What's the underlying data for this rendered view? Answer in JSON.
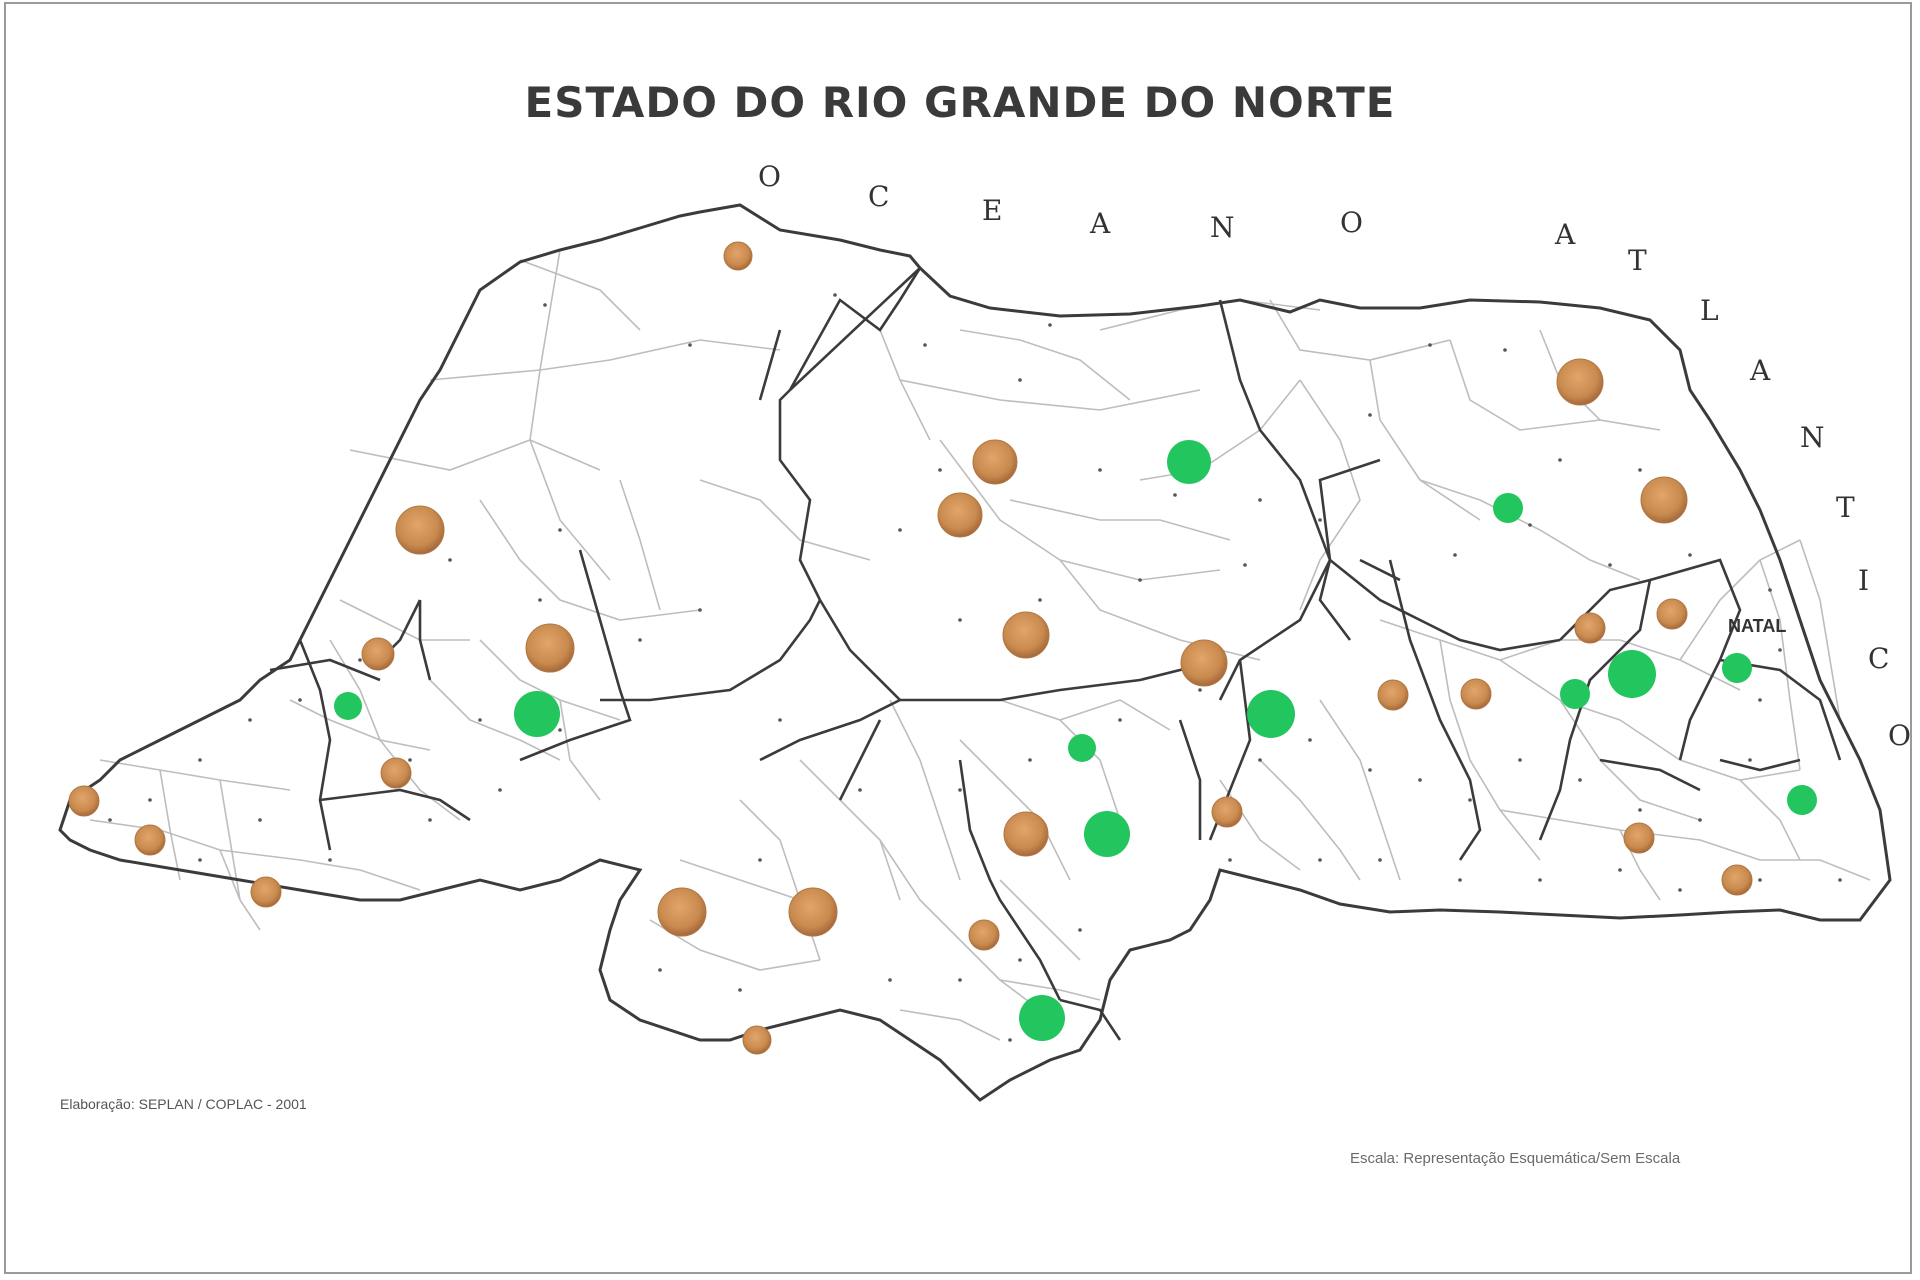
{
  "map": {
    "title": "ESTADO DO RIO GRANDE DO NORTE",
    "ocean_label": "O C E A N O   A T L Â N T I C O",
    "ocean_letters": [
      "O",
      "C",
      "E",
      "A",
      "N",
      "O",
      "A",
      "T",
      "L",
      "A",
      "N",
      "T",
      "I",
      "C",
      "O"
    ],
    "capital_label": "NATAL",
    "credit": "Elaboração: SEPLAN / COPLAC - 2001",
    "scale_note": "Escala: Representação Esquemática/Sem Escala"
  },
  "colors": {
    "border": "#3b3b3b",
    "internal": "#bdbdbd",
    "green_marker": "#22c55e",
    "brown_marker": "#c98a4e",
    "brown_marker_dark": "#9c5f2c"
  },
  "markers": {
    "green_count": 13,
    "brown_count": 29
  }
}
